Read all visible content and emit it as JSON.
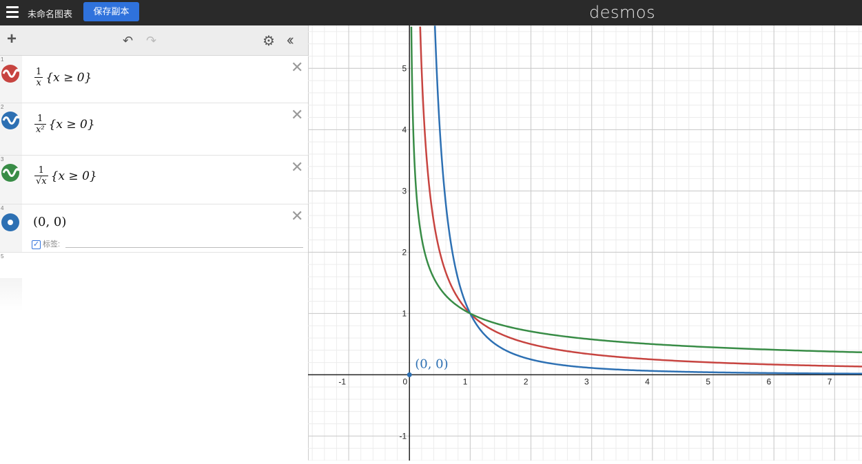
{
  "topbar": {
    "title": "未命名图表",
    "save_button": "保存副本",
    "brand": "desmos"
  },
  "toolbar": {
    "add_icon": "plus-icon",
    "undo_icon": "undo-icon",
    "redo_icon": "redo-icon",
    "settings_icon": "gear-icon",
    "collapse_icon": "double-chevron-left-icon"
  },
  "expressions": [
    {
      "index": "1",
      "color": "#c74440",
      "num": "1",
      "den": "x",
      "cond": "{x ≥ 0}"
    },
    {
      "index": "2",
      "color": "#2d70b3",
      "num": "1",
      "den": "x²",
      "cond": "{x ≥ 0}"
    },
    {
      "index": "3",
      "color": "#388c46",
      "num": "1",
      "den": "√x",
      "cond": "{x ≥ 0}"
    },
    {
      "index": "4",
      "color": "#2d70b3",
      "point": "(0, 0)",
      "label_text": "标签:"
    },
    {
      "index": "5"
    }
  ],
  "chart_data": {
    "type": "line",
    "xlim": [
      -1.67,
      7.45
    ],
    "ylim": [
      -1.4,
      5.7
    ],
    "x_ticks": [
      "-1",
      "0",
      "1",
      "2",
      "3",
      "4",
      "5",
      "6",
      "7"
    ],
    "y_ticks": [
      "-1",
      "1",
      "2",
      "3",
      "4",
      "5"
    ],
    "grid": true,
    "series": [
      {
        "color": "#c74440",
        "x": [
          0.176,
          0.25,
          0.5,
          1,
          2,
          3,
          4,
          5,
          6,
          7,
          7.45
        ],
        "y": [
          5.7,
          4,
          2,
          1,
          0.5,
          0.333,
          0.25,
          0.2,
          0.167,
          0.143,
          0.134
        ]
      },
      {
        "color": "#2d70b3",
        "x": [
          0.419,
          0.5,
          0.75,
          1,
          1.5,
          2,
          3,
          4,
          5,
          6,
          7,
          7.45
        ],
        "y": [
          5.7,
          4,
          1.778,
          1,
          0.444,
          0.25,
          0.111,
          0.0625,
          0.04,
          0.028,
          0.02,
          0.018
        ]
      },
      {
        "color": "#388c46",
        "x": [
          0.031,
          0.0625,
          0.111,
          0.25,
          0.5,
          1,
          2,
          3,
          4,
          5,
          6,
          7,
          7.45
        ],
        "y": [
          5.7,
          4,
          3,
          2,
          1.414,
          1,
          0.707,
          0.577,
          0.5,
          0.447,
          0.408,
          0.378,
          0.366
        ]
      }
    ],
    "point": {
      "x": 0,
      "y": 0,
      "label": "(0, 0)",
      "color": "#2d70b3"
    }
  }
}
